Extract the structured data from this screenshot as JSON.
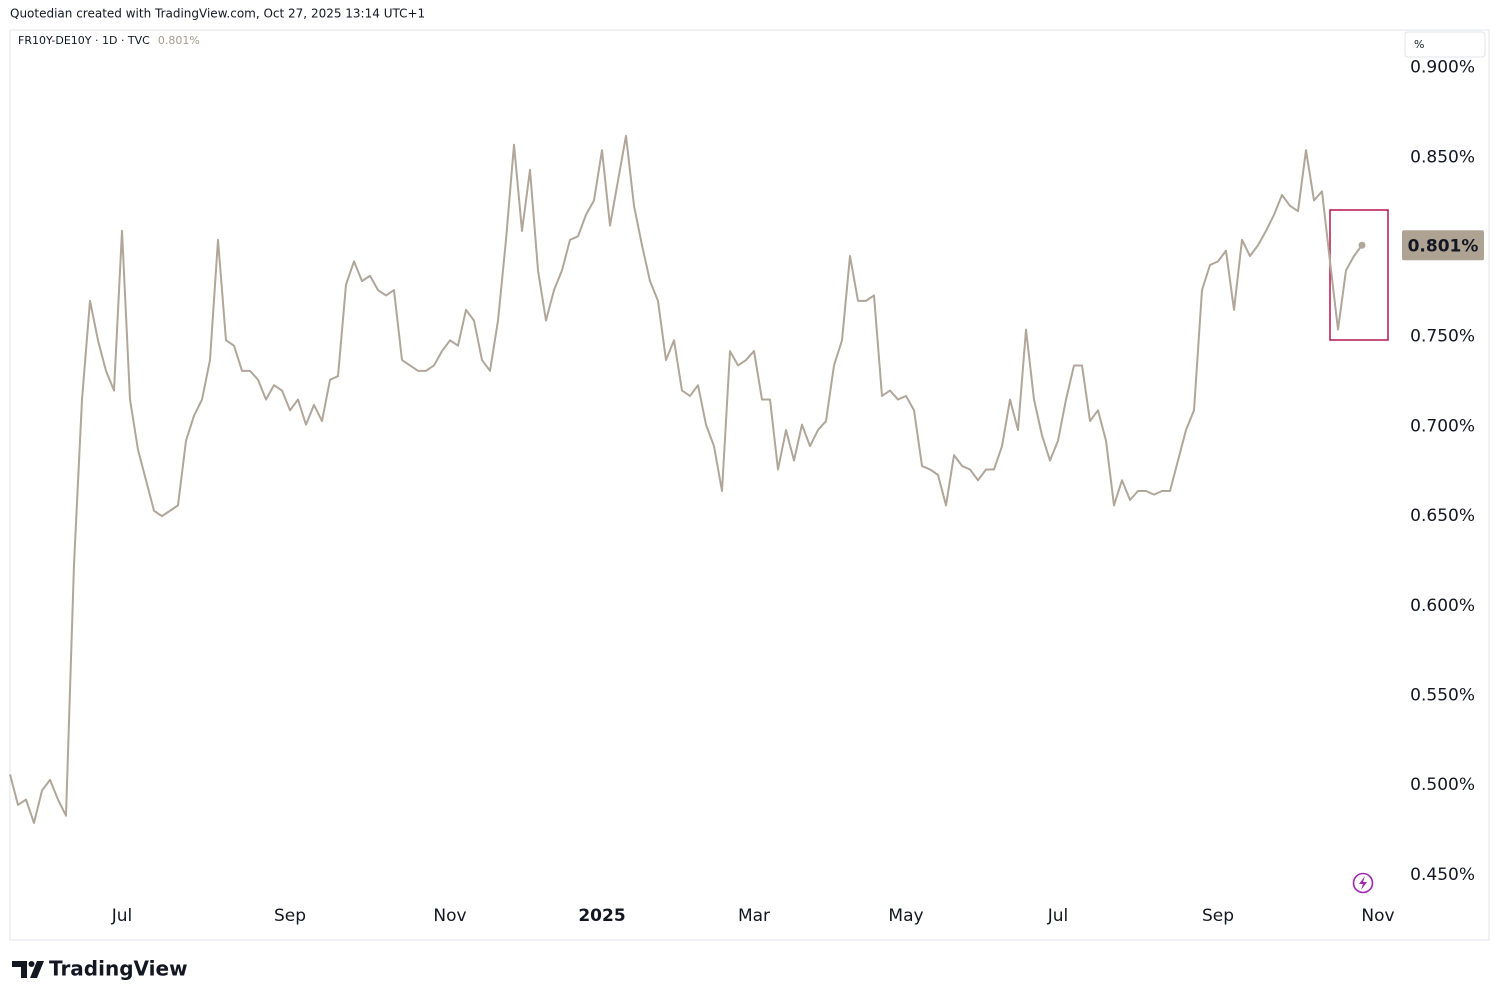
{
  "header": {
    "attribution": "Quotedian created with TradingView.com, Oct 27, 2025 13:14 UTC+1"
  },
  "footer": {
    "brand": "TradingView"
  },
  "chart_data": {
    "type": "line",
    "symbol": "FR10Y-DE10Y · 1D · TVC",
    "unit_button": "%",
    "last_value": {
      "value": 0.801,
      "label": "0.801%"
    },
    "categories": [
      null,
      null,
      null,
      null,
      null,
      null,
      null,
      null,
      null,
      null,
      null,
      null,
      null,
      null,
      "Jul",
      null,
      null,
      null,
      null,
      null,
      null,
      null,
      null,
      null,
      null,
      null,
      null,
      null,
      null,
      null,
      null,
      null,
      null,
      null,
      null,
      "Sep",
      null,
      null,
      null,
      null,
      null,
      null,
      null,
      null,
      null,
      null,
      null,
      null,
      null,
      null,
      null,
      null,
      null,
      null,
      null,
      "Nov",
      null,
      null,
      null,
      null,
      null,
      null,
      null,
      null,
      null,
      null,
      null,
      null,
      null,
      null,
      null,
      null,
      null,
      null,
      "2025",
      null,
      null,
      null,
      null,
      null,
      null,
      null,
      null,
      null,
      null,
      null,
      null,
      null,
      null,
      null,
      null,
      null,
      null,
      "Mar",
      null,
      null,
      null,
      null,
      null,
      null,
      null,
      null,
      null,
      null,
      null,
      null,
      null,
      null,
      null,
      null,
      null,
      null,
      "May",
      null,
      null,
      null,
      null,
      null,
      null,
      null,
      null,
      null,
      null,
      null,
      null,
      null,
      null,
      null,
      null,
      null,
      null,
      "Jul",
      null,
      null,
      null,
      null,
      null,
      null,
      null,
      null,
      null,
      null,
      null,
      null,
      null,
      null,
      null,
      null,
      null,
      null,
      null,
      "Sep",
      null,
      null,
      null,
      null,
      null,
      null,
      null,
      null,
      null,
      null,
      null,
      null,
      null,
      null,
      null,
      null,
      null,
      null,
      null,
      "Nov"
    ],
    "bold_categories": [
      "2025"
    ],
    "series": [
      {
        "color": "#b0a69a",
        "values": [
          0.506,
          0.489,
          0.492,
          0.479,
          0.497,
          0.503,
          0.492,
          0.483,
          0.623,
          0.715,
          0.77,
          0.748,
          0.731,
          0.72,
          0.809,
          0.715,
          0.687,
          0.67,
          0.653,
          0.65,
          0.653,
          0.656,
          0.692,
          0.706,
          0.715,
          0.737,
          0.804,
          0.748,
          0.745,
          0.731,
          0.731,
          0.726,
          0.715,
          0.723,
          0.72,
          0.709,
          0.715,
          0.701,
          0.712,
          0.703,
          0.726,
          0.728,
          0.779,
          0.792,
          0.781,
          0.784,
          0.776,
          0.773,
          0.776,
          0.737,
          0.734,
          0.731,
          0.731,
          0.734,
          0.742,
          0.748,
          0.745,
          0.765,
          0.759,
          0.737,
          0.731,
          0.759,
          0.804,
          0.857,
          0.809,
          0.843,
          0.787,
          0.759,
          0.776,
          0.787,
          0.804,
          0.806,
          0.818,
          0.826,
          0.854,
          0.812,
          0.837,
          0.862,
          0.823,
          0.801,
          0.781,
          0.77,
          0.737,
          0.748,
          0.72,
          0.717,
          0.723,
          0.701,
          0.689,
          0.664,
          0.742,
          0.734,
          0.737,
          0.742,
          0.715,
          0.715,
          0.676,
          0.698,
          0.681,
          0.701,
          0.689,
          0.698,
          0.703,
          0.734,
          0.748,
          0.795,
          0.77,
          0.77,
          0.773,
          0.717,
          0.72,
          0.715,
          0.717,
          0.709,
          0.678,
          0.676,
          0.673,
          0.656,
          0.684,
          0.678,
          0.676,
          0.67,
          0.676,
          0.676,
          0.689,
          0.715,
          0.698,
          0.754,
          0.715,
          0.695,
          0.681,
          0.692,
          0.715,
          0.734,
          0.734,
          0.703,
          0.709,
          0.692,
          0.656,
          0.67,
          0.659,
          0.664,
          0.664,
          0.662,
          0.664,
          0.664,
          0.681,
          0.698,
          0.709,
          0.776,
          0.79,
          0.792,
          0.798,
          0.765,
          0.804,
          0.795,
          0.801,
          0.809,
          0.818,
          0.829,
          0.823,
          0.82,
          0.854,
          0.826,
          0.831,
          0.792,
          0.754,
          0.787,
          0.795,
          0.801,
          null,
          null
        ]
      }
    ],
    "ylim": [
      0.436,
      0.921
    ],
    "yticks": [
      {
        "value": 0.45,
        "label": "0.450%"
      },
      {
        "value": 0.5,
        "label": "0.500%"
      },
      {
        "value": 0.55,
        "label": "0.550%"
      },
      {
        "value": 0.6,
        "label": "0.600%"
      },
      {
        "value": 0.65,
        "label": "0.650%"
      },
      {
        "value": 0.7,
        "label": "0.700%"
      },
      {
        "value": 0.75,
        "label": "0.750%"
      },
      {
        "value": 0.8,
        "label": "0.800%"
      },
      {
        "value": 0.85,
        "label": "0.850%"
      },
      {
        "value": 0.9,
        "label": "0.900%"
      }
    ],
    "grid": false
  }
}
